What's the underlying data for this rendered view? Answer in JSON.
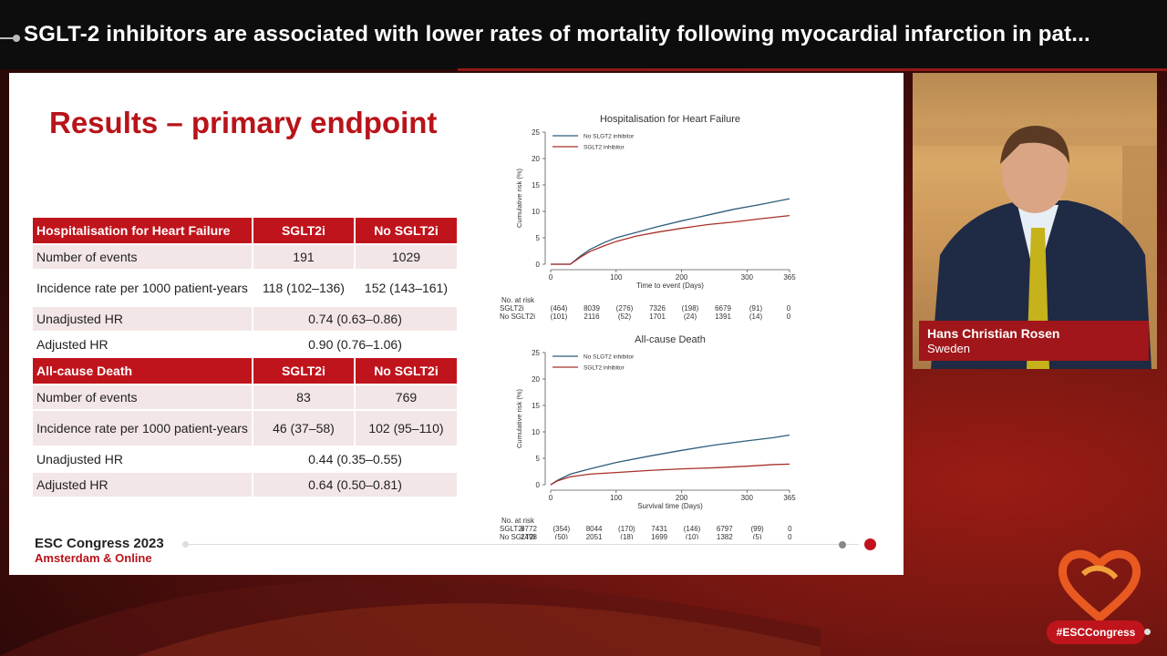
{
  "headline": "SGLT-2 inhibitors are associated with lower rates of mortality following myocardial infarction in pat...",
  "slide": {
    "title": "Results – primary endpoint",
    "table": [
      {
        "type": "hdr",
        "cells": [
          "Hospitalisation for Heart Failure",
          "SGLT2i",
          "No SGLT2i"
        ]
      },
      {
        "type": "alt",
        "cells": [
          "Number of events",
          "191",
          "1029"
        ]
      },
      {
        "type": "tall",
        "cells": [
          "Incidence rate per 1000 patient-years",
          "118 (102–136)",
          "152 (143–161)"
        ]
      },
      {
        "type": "altspan",
        "cells": [
          "Unadjusted HR",
          "0.74 (0.63–0.86)"
        ]
      },
      {
        "type": "span",
        "cells": [
          "Adjusted HR",
          "0.90 (0.76–1.06)"
        ]
      },
      {
        "type": "hdr",
        "cells": [
          "All-cause Death",
          "SGLT2i",
          "No SGLT2i"
        ]
      },
      {
        "type": "alt",
        "cells": [
          "Number of events",
          "83",
          "769"
        ]
      },
      {
        "type": "talt",
        "cells": [
          "Incidence rate per 1000 patient-years",
          "46 (37–58)",
          "102 (95–110)"
        ]
      },
      {
        "type": "span",
        "cells": [
          "Unadjusted HR",
          "0.44 (0.35–0.55)"
        ]
      },
      {
        "type": "altspan",
        "cells": [
          "Adjusted HR",
          "0.64 (0.50–0.81)"
        ]
      }
    ],
    "footer_line1": "ESC Congress 2023",
    "footer_line2": "Amsterdam & Online"
  },
  "colors": {
    "no_sglt2": "#2f5d7c",
    "sglt2": "#a8302a",
    "brand": "#c0141c"
  },
  "chart_data": [
    {
      "type": "line",
      "title": "Hospitalisation for Heart Failure",
      "xlabel": "Time to event (Days)",
      "ylabel": "Cumulative risk (%)",
      "xlim": [
        0,
        365
      ],
      "ylim": [
        0,
        25
      ],
      "xticks": [
        0,
        100,
        200,
        300,
        365
      ],
      "yticks": [
        0,
        5,
        10,
        15,
        20,
        25
      ],
      "series": [
        {
          "name": "No SLGT2 inhibitor",
          "x": [
            0,
            30,
            45,
            60,
            80,
            100,
            130,
            160,
            200,
            240,
            280,
            320,
            365
          ],
          "values": [
            0,
            0,
            1.5,
            2.8,
            4.0,
            5.0,
            6.0,
            7.0,
            8.2,
            9.3,
            10.4,
            11.3,
            12.4
          ]
        },
        {
          "name": "SGLT2 inhibitor",
          "x": [
            0,
            30,
            45,
            60,
            80,
            100,
            130,
            160,
            200,
            240,
            280,
            320,
            365
          ],
          "values": [
            0,
            0,
            1.3,
            2.4,
            3.4,
            4.3,
            5.3,
            6.0,
            6.8,
            7.5,
            8.0,
            8.6,
            9.2
          ]
        }
      ],
      "risk_table": {
        "header": "No. at risk",
        "rows": [
          {
            "label": "SGLT2i",
            "values": [
              "(464)",
              "8039",
              "(276)",
              "7326",
              "(198)",
              "6679",
              "(91)",
              "0"
            ]
          },
          {
            "label": "No SGLT2i",
            "values": [
              "(101)",
              "2116",
              "(52)",
              "1701",
              "(24)",
              "1391",
              "(14)",
              "0"
            ]
          }
        ]
      }
    },
    {
      "type": "line",
      "title": "All-cause Death",
      "xlabel": "Survival time (Days)",
      "ylabel": "Cumulative risk (%)",
      "xlim": [
        0,
        365
      ],
      "ylim": [
        0,
        25
      ],
      "xticks": [
        0,
        100,
        200,
        300,
        365
      ],
      "yticks": [
        0,
        5,
        10,
        15,
        20,
        25
      ],
      "series": [
        {
          "name": "No SLGT2 inhibitor",
          "x": [
            0,
            10,
            30,
            60,
            100,
            150,
            200,
            250,
            300,
            340,
            365
          ],
          "values": [
            0,
            0.8,
            2.0,
            3.0,
            4.2,
            5.4,
            6.5,
            7.5,
            8.3,
            8.9,
            9.4
          ]
        },
        {
          "name": "SGLT2 inhibitor",
          "x": [
            0,
            10,
            30,
            60,
            100,
            150,
            200,
            250,
            300,
            340,
            365
          ],
          "values": [
            0,
            0.7,
            1.5,
            2.0,
            2.3,
            2.7,
            3.0,
            3.2,
            3.5,
            3.8,
            3.9
          ]
        }
      ],
      "risk_table": {
        "header": "No. at risk",
        "rows": [
          {
            "label": "SGLT2i",
            "values": [
              "8772",
              "(354)",
              "8044",
              "(170)",
              "7431",
              "(146)",
              "6797",
              "(99)",
              "0"
            ]
          },
          {
            "label": "No SGLT2i",
            "values": [
              "2498",
              "(50)",
              "2051",
              "(18)",
              "1699",
              "(10)",
              "1382",
              "(5)",
              "0"
            ]
          }
        ]
      }
    }
  ],
  "speaker": {
    "name": "Hans Christian Rosen",
    "country": "Sweden"
  },
  "hashtag": "#ESCCongress"
}
